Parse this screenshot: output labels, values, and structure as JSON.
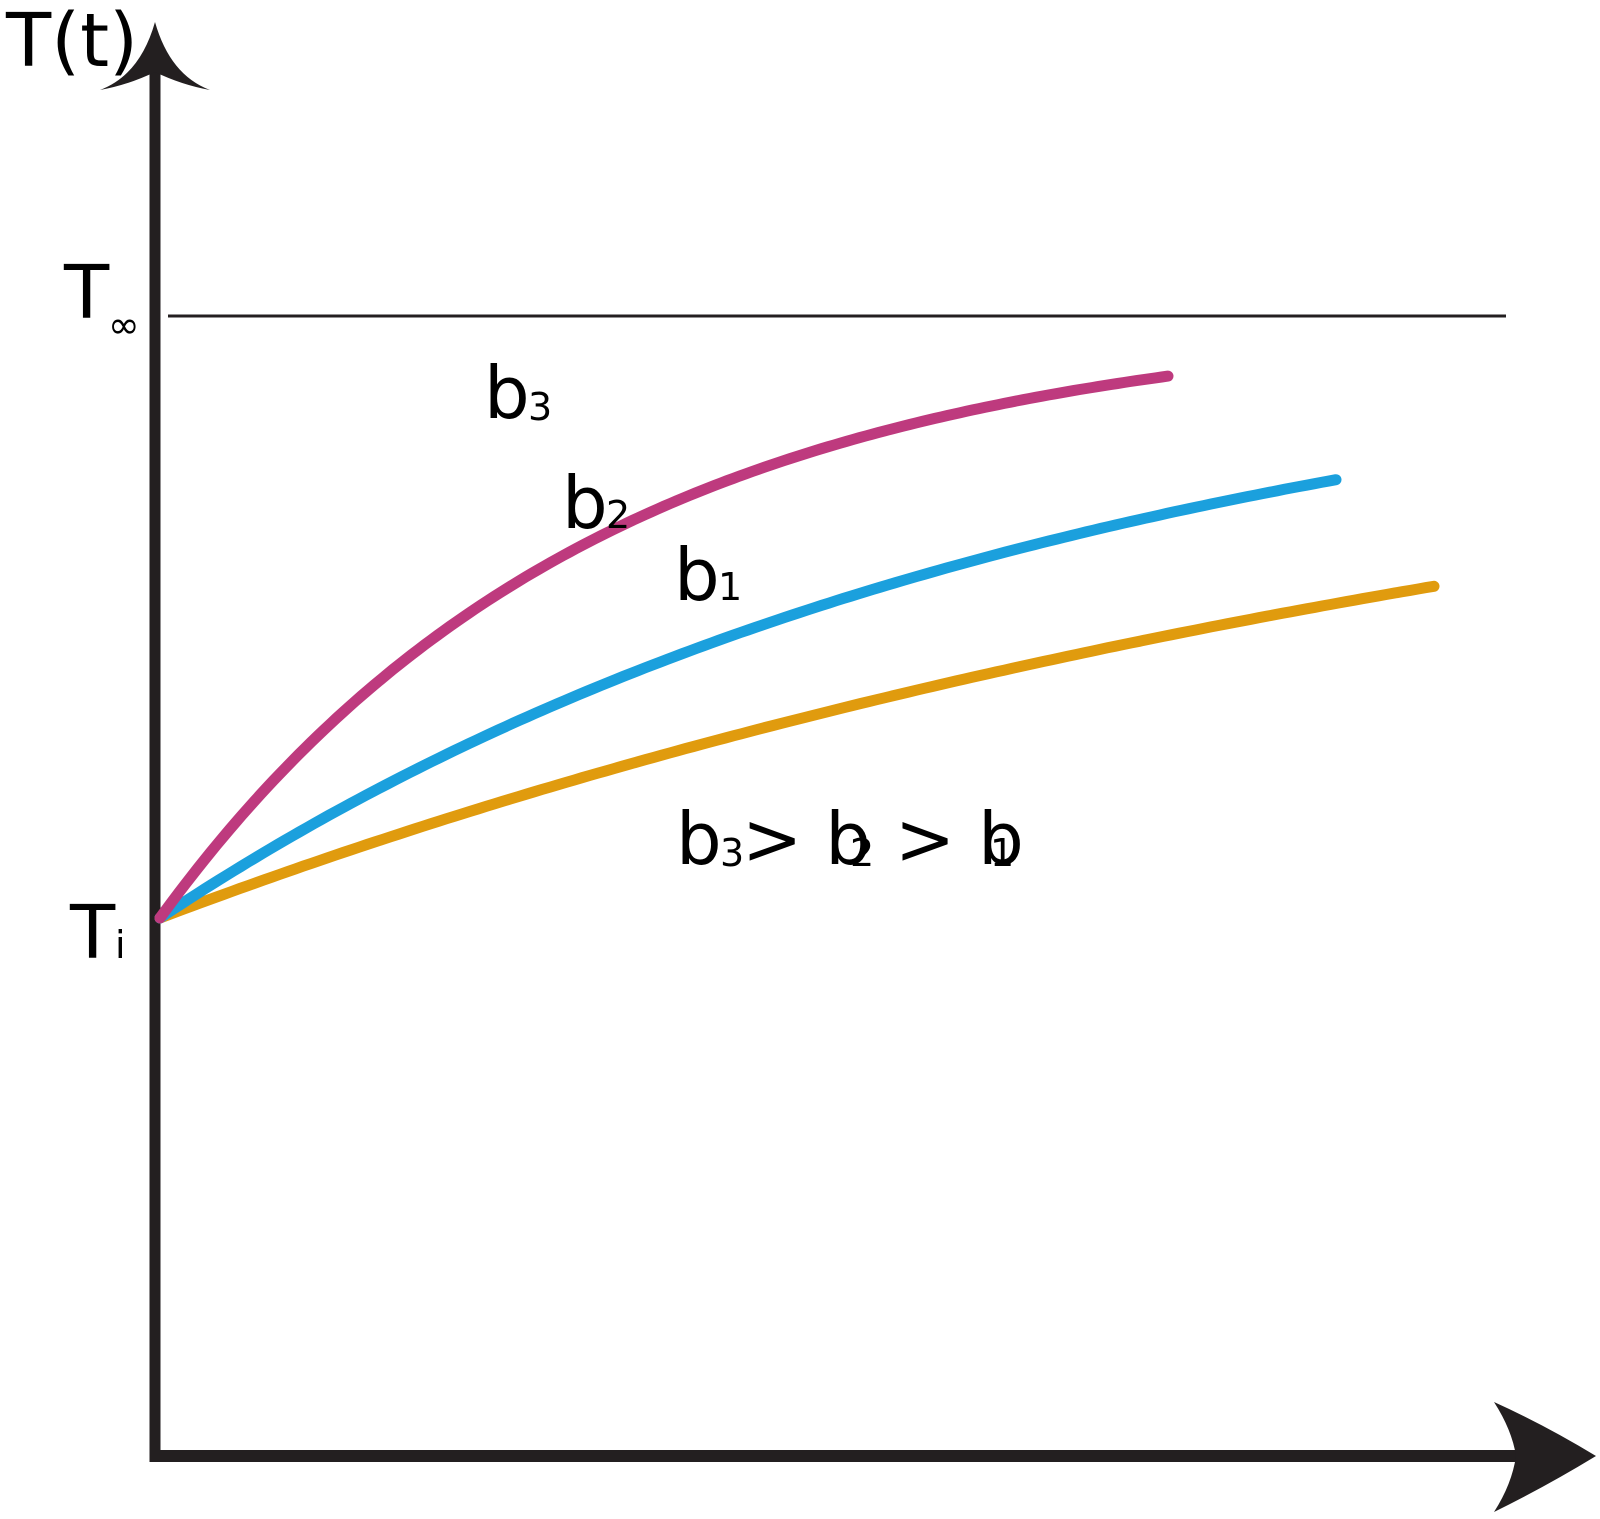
{
  "chart_data": {
    "type": "line",
    "y_axis_label": "T(t)",
    "y_ticks": [
      {
        "main": "T",
        "sub": "∞",
        "value": 1.0
      },
      {
        "main": "T",
        "sub": "i",
        "value": 0.0
      }
    ],
    "asymptote": {
      "value": 1.0
    },
    "series": [
      {
        "name": "b",
        "sub": "3",
        "color": "#BE3A7E",
        "rate": 3.2,
        "x_end": 0.72
      },
      {
        "name": "b",
        "sub": "2",
        "color": "#1BA0DD",
        "rate": 1.55,
        "x_end": 0.84
      },
      {
        "name": "b",
        "sub": "1",
        "color": "#E09B0E",
        "rate": 0.88,
        "x_end": 0.91
      }
    ],
    "annotation": {
      "parts": [
        {
          "main": "b",
          "sub": "3"
        },
        {
          "main": "> b",
          "sub": "2"
        },
        {
          "main": " > b",
          "sub": "1"
        }
      ]
    },
    "grid": false,
    "legend": "none"
  }
}
